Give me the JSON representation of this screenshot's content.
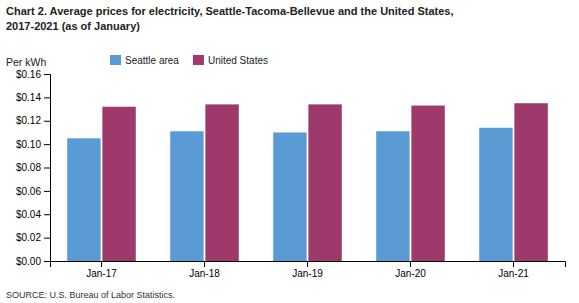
{
  "chart_data": {
    "type": "bar",
    "title": "Chart 2. Average prices for electricity, Seattle-Tacoma-Bellevue and the United States,",
    "subtitle": "2017-2021  (as of January)",
    "y_label": "Per kWh",
    "source": "SOURCE: U.S. Bureau of Labor Statistics.",
    "categories": [
      "Jan-17",
      "Jan-18",
      "Jan-19",
      "Jan-20",
      "Jan-21"
    ],
    "series": [
      {
        "name": "Seattle area",
        "color": "#5B9BD5",
        "values": [
          0.105,
          0.111,
          0.11,
          0.111,
          0.114
        ]
      },
      {
        "name": "United States",
        "color": "#9E3A6B",
        "values": [
          0.132,
          0.134,
          0.134,
          0.133,
          0.135
        ]
      }
    ],
    "ylim": [
      0.0,
      0.16
    ],
    "yticks": [
      {
        "value": 0.0,
        "label": "$0.00"
      },
      {
        "value": 0.02,
        "label": "$0.02"
      },
      {
        "value": 0.04,
        "label": "$0.04"
      },
      {
        "value": 0.06,
        "label": "$0.06"
      },
      {
        "value": 0.08,
        "label": "$0.08"
      },
      {
        "value": 0.1,
        "label": "$0.10"
      },
      {
        "value": 0.12,
        "label": "$0.12"
      },
      {
        "value": 0.14,
        "label": "$0.14"
      },
      {
        "value": 0.16,
        "label": "$0.16"
      }
    ],
    "legend": "upper left",
    "grid": false
  }
}
